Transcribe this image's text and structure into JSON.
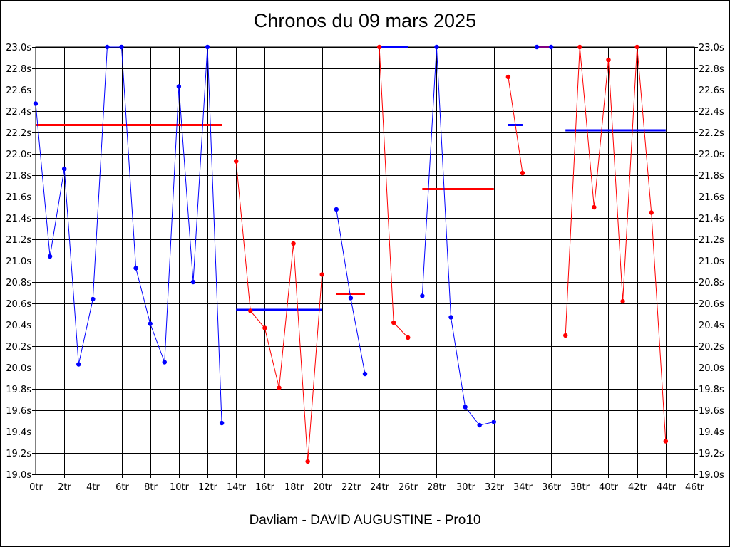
{
  "colors": {
    "blue": "#0000ff",
    "red": "#ff0000",
    "grid": "#000000"
  },
  "chart_data": {
    "type": "line",
    "title": "Chronos du 09 mars 2025",
    "subtitle": "Davliam - DAVID AUGUSTINE - Pro10",
    "xlim": [
      0,
      46
    ],
    "ylim": [
      19.0,
      23.0
    ],
    "x_ticks": [
      "0tr",
      "2tr",
      "4tr",
      "6tr",
      "8tr",
      "10tr",
      "12tr",
      "14tr",
      "16tr",
      "18tr",
      "20tr",
      "22tr",
      "24tr",
      "26tr",
      "28tr",
      "30tr",
      "32tr",
      "34tr",
      "36tr",
      "38tr",
      "40tr",
      "42tr",
      "44tr",
      "46tr"
    ],
    "y_ticks": [
      "19.0s",
      "19.2s",
      "19.4s",
      "19.6s",
      "19.8s",
      "20.0s",
      "20.2s",
      "20.4s",
      "20.6s",
      "20.8s",
      "21.0s",
      "21.2s",
      "21.4s",
      "21.6s",
      "21.8s",
      "22.0s",
      "22.2s",
      "22.4s",
      "22.6s",
      "22.8s",
      "23.0s"
    ],
    "grid": true,
    "segments": [
      {
        "color": "blue",
        "points": [
          [
            0,
            22.47
          ],
          [
            1,
            21.04
          ],
          [
            2,
            21.86
          ],
          [
            3,
            20.03
          ],
          [
            4,
            20.64
          ],
          [
            5,
            23.0
          ],
          [
            6,
            23.0
          ],
          [
            7,
            20.93
          ],
          [
            8,
            20.41
          ],
          [
            9,
            20.05
          ],
          [
            10,
            22.63
          ],
          [
            11,
            20.8
          ],
          [
            12,
            23.0
          ],
          [
            13,
            19.48
          ]
        ],
        "average": 22.27,
        "avg_color": "red"
      },
      {
        "color": "red",
        "points": [
          [
            14,
            21.93
          ],
          [
            15,
            20.53
          ],
          [
            16,
            20.37
          ],
          [
            17,
            19.81
          ],
          [
            18,
            21.16
          ],
          [
            19,
            19.12
          ],
          [
            20,
            20.87
          ]
        ],
        "average": 20.54,
        "avg_color": "blue"
      },
      {
        "color": "blue",
        "points": [
          [
            21,
            21.48
          ],
          [
            22,
            20.65
          ],
          [
            23,
            19.94
          ]
        ],
        "average": 20.69,
        "avg_color": "red"
      },
      {
        "color": "red",
        "points": [
          [
            24,
            23.0
          ],
          [
            25,
            20.42
          ],
          [
            26,
            20.28
          ]
        ],
        "average": 23.0,
        "avg_color": "blue"
      },
      {
        "color": "blue",
        "points": [
          [
            27,
            20.67
          ],
          [
            28,
            23.0
          ],
          [
            29,
            20.47
          ],
          [
            30,
            19.63
          ],
          [
            31,
            19.46
          ],
          [
            32,
            19.49
          ]
        ],
        "average": 21.67,
        "avg_color": "red"
      },
      {
        "color": "red",
        "points": [
          [
            33,
            22.72
          ],
          [
            34,
            21.82
          ]
        ],
        "average": 22.27,
        "avg_color": "blue"
      },
      {
        "color": "blue",
        "points": [
          [
            35,
            23.0
          ],
          [
            36,
            23.0
          ]
        ],
        "average": 23.0,
        "avg_color": "red"
      },
      {
        "color": "red",
        "points": [
          [
            37,
            20.3
          ],
          [
            38,
            23.0
          ],
          [
            39,
            21.5
          ],
          [
            40,
            22.88
          ],
          [
            41,
            20.62
          ],
          [
            42,
            23.0
          ],
          [
            43,
            21.45
          ],
          [
            44,
            19.31
          ]
        ],
        "average": 22.22,
        "avg_color": "blue"
      }
    ]
  }
}
